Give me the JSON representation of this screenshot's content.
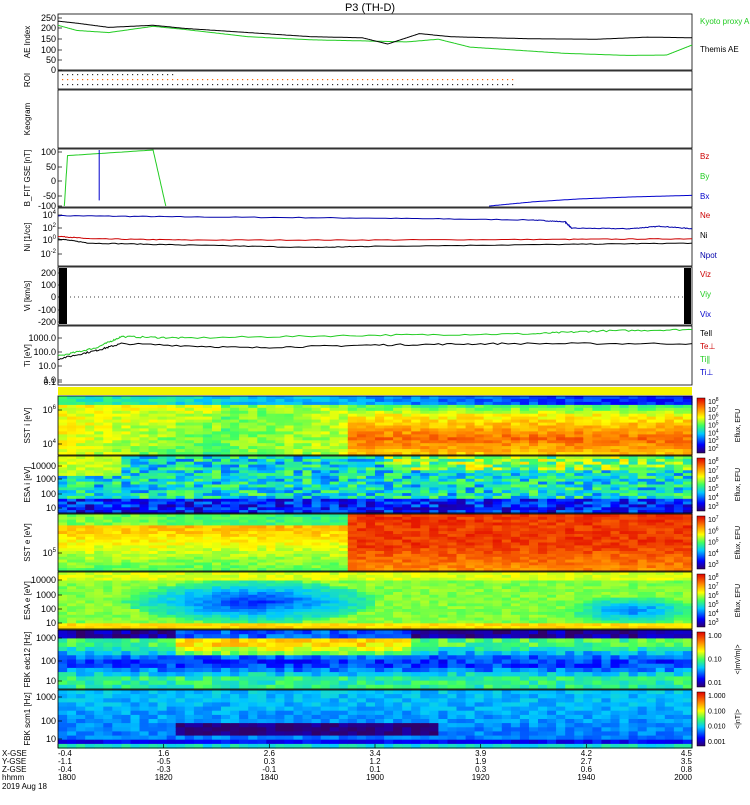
{
  "title": "P3 (TH-D)",
  "colors": {
    "kyoto": "#22cc22",
    "themis": "#000000",
    "bz": "#cc0000",
    "by": "#22cc22",
    "bx": "#0000cc",
    "ne": "#cc0000",
    "ni": "#000000",
    "npot": "#0000aa",
    "vix": "#0000cc",
    "viy": "#22cc22",
    "viz": "#cc0000",
    "teli": "#000000",
    "teperp": "#cc0000",
    "tipar": "#22cc22",
    "tiperp": "#0000cc"
  },
  "chart_data": [
    {
      "id": "ae",
      "type": "line",
      "ylabel": "AE Index",
      "ylim": [
        0,
        250
      ],
      "ticks": [
        "250",
        "200",
        "150",
        "100",
        "50",
        "0"
      ],
      "series": [
        {
          "name": "Kyoto proxy AE",
          "color_key": "kyoto",
          "x": [
            0,
            0.03,
            0.08,
            0.15,
            0.2,
            0.3,
            0.4,
            0.48,
            0.55,
            0.6,
            0.65,
            0.7,
            0.8,
            0.9,
            0.96,
            1.0
          ],
          "values": [
            215,
            190,
            180,
            210,
            195,
            160,
            145,
            140,
            135,
            148,
            110,
            100,
            80,
            70,
            72,
            120
          ]
        },
        {
          "name": "Themis AE",
          "color_key": "themis",
          "x": [
            0,
            0.03,
            0.08,
            0.15,
            0.2,
            0.3,
            0.4,
            0.48,
            0.52,
            0.57,
            0.62,
            0.68,
            0.75,
            0.85,
            0.93,
            1.0
          ],
          "values": [
            235,
            225,
            205,
            215,
            200,
            180,
            160,
            155,
            125,
            175,
            160,
            155,
            150,
            148,
            158,
            155
          ]
        }
      ],
      "legend": [
        "Kyoto proxy AE",
        "Themis AE"
      ]
    },
    {
      "id": "roi",
      "type": "scatter",
      "ylabel": "ROI"
    },
    {
      "id": "keogram",
      "type": "heatmap",
      "ylabel": "Keogram"
    },
    {
      "id": "bfit",
      "type": "line",
      "ylabel": "B_FIT GSE [nT]",
      "ylim": [
        -100,
        100
      ],
      "ticks": [
        "100",
        "50",
        "0",
        "-50",
        "-100"
      ],
      "legend": [
        "Bz",
        "By",
        "Bx"
      ],
      "series": [
        {
          "name": "By",
          "color_key": "by",
          "x": [
            0.01,
            0.015,
            0.15,
            0.17
          ],
          "values": [
            -100,
            80,
            100,
            -100
          ]
        },
        {
          "name": "Bx",
          "color_key": "bx",
          "x": [
            0.065,
            0.065,
            0.065
          ],
          "values": [
            100,
            30,
            -80
          ]
        },
        {
          "name": "Bx",
          "color_key": "bx",
          "x": [
            0.68,
            0.75,
            0.82,
            0.9,
            1.0
          ],
          "values": [
            -100,
            -85,
            -75,
            -68,
            -62
          ]
        }
      ]
    },
    {
      "id": "ni",
      "type": "line",
      "ylabel": "Ni [1/cc]",
      "ticks": [
        "10^4",
        "10^2",
        "10^0",
        "10^-2"
      ],
      "legend": [
        "Ne",
        "Ni",
        "Npot"
      ],
      "series": [
        {
          "name": "Npot",
          "color_key": "npot",
          "x": [
            0,
            0.2,
            0.5,
            0.75,
            0.8,
            0.81,
            0.9,
            0.95,
            1.0
          ],
          "values": [
            3.9,
            3.7,
            3.5,
            3.2,
            2.9,
            1.9,
            1.8,
            2.2,
            1.8
          ]
        },
        {
          "name": "Ne",
          "color_key": "ne",
          "x": [
            0,
            0.05,
            0.2,
            0.5,
            0.8,
            1.0
          ],
          "values": [
            0.6,
            0.2,
            0.0,
            0.0,
            0.1,
            0.2
          ]
        },
        {
          "name": "Ni",
          "color_key": "ni",
          "x": [
            0,
            0.05,
            0.2,
            0.4,
            0.5,
            0.8,
            1.0
          ],
          "values": [
            0.2,
            -0.5,
            -0.8,
            -1.2,
            -1.0,
            -0.7,
            -0.5
          ]
        }
      ]
    },
    {
      "id": "vi",
      "type": "line",
      "ylabel": "Vi [km/s]",
      "ticks": [
        "200",
        "100",
        "0",
        "-100",
        "-200"
      ],
      "legend": [
        "Viz",
        "Viy",
        "Vix"
      ]
    },
    {
      "id": "ti",
      "type": "line",
      "ylabel": "Ti [eV]",
      "ticks": [
        "1000.0",
        "100.0",
        "10.0",
        "1.0",
        "0.1"
      ],
      "legend": [
        "Tell",
        "Te⊥",
        "Ti∥",
        "Ti⊥"
      ],
      "series": [
        {
          "name": "Ti∥",
          "color_key": "tipar",
          "x": [
            0,
            0.06,
            0.1,
            0.2,
            0.5,
            0.75,
            0.85,
            1.0
          ],
          "values": [
            1.7,
            2.3,
            3.1,
            3.0,
            3.2,
            3.3,
            3.5,
            3.6
          ]
        },
        {
          "name": "Tell",
          "color_key": "teli",
          "x": [
            0,
            0.06,
            0.1,
            0.3,
            0.5,
            0.7,
            1.0
          ],
          "values": [
            1.5,
            2.1,
            2.6,
            2.3,
            2.5,
            2.6,
            2.6
          ]
        }
      ]
    },
    {
      "id": "sst1",
      "type": "heatmap",
      "ylabel": "SST i [eV]",
      "ticks": [
        "10^6",
        "10^4"
      ],
      "colorbar": [
        "10^8",
        "10^7",
        "10^6",
        "10^5",
        "10^4",
        "10^3",
        "10^2"
      ],
      "colorbar_label": "Eflux, EFU"
    },
    {
      "id": "esa1",
      "type": "heatmap",
      "ylabel": "ESA i [eV]",
      "ticks": [
        "10000",
        "1000",
        "100",
        "10"
      ],
      "colorbar": [
        "10^8",
        "10^7",
        "10^6",
        "10^5",
        "10^4",
        "10^3"
      ],
      "colorbar_label": "Eflux, EFU"
    },
    {
      "id": "sst2",
      "type": "heatmap",
      "ylabel": "SST e [eV]",
      "ticks": [
        "10^5"
      ],
      "colorbar": [
        "10^7",
        "10^6",
        "10^5",
        "10^4",
        "10^3"
      ],
      "colorbar_label": "Eflux, EFU"
    },
    {
      "id": "esa2",
      "type": "heatmap",
      "ylabel": "ESA e [eV]",
      "ticks": [
        "10000",
        "1000",
        "100",
        "10"
      ],
      "colorbar": [
        "10^8",
        "10^7",
        "10^6",
        "10^5",
        "10^4",
        "10^3"
      ],
      "colorbar_label": "Eflux, EFU"
    },
    {
      "id": "fbk1",
      "type": "heatmap",
      "ylabel": "FBK edc12 [Hz]",
      "ticks": [
        "1000",
        "100",
        "10"
      ],
      "colorbar": [
        "1.00",
        "0.10",
        "0.01"
      ],
      "colorbar_label": "<|mV/m|>"
    },
    {
      "id": "fbk2",
      "type": "heatmap",
      "ylabel": "FBK scm1 [Hz]",
      "ticks": [
        "1000",
        "100",
        "10"
      ],
      "colorbar": [
        "1.000",
        "0.100",
        "0.010",
        "0.001"
      ],
      "colorbar_label": "<|nT|>"
    }
  ],
  "xaxis": {
    "row_labels": [
      "X-GSE",
      "Y-GSE",
      "Z-GSE",
      "hhmm",
      "2019 Aug 18"
    ],
    "columns": [
      {
        "x": "-0.4",
        "y": "-1.1",
        "z": "-0.4",
        "t": "1800"
      },
      {
        "x": "1.6",
        "y": "-0.5",
        "z": "-0.3",
        "t": "1820"
      },
      {
        "x": "2.6",
        "y": "0.3",
        "z": "-0.1",
        "t": "1840"
      },
      {
        "x": "3.4",
        "y": "1.2",
        "z": "0.1",
        "t": "1900"
      },
      {
        "x": "3.9",
        "y": "1.9",
        "z": "0.3",
        "t": "1920"
      },
      {
        "x": "4.2",
        "y": "2.7",
        "z": "0.6",
        "t": "1940"
      },
      {
        "x": "4.5",
        "y": "3.5",
        "z": "0.8",
        "t": "2000"
      }
    ]
  }
}
